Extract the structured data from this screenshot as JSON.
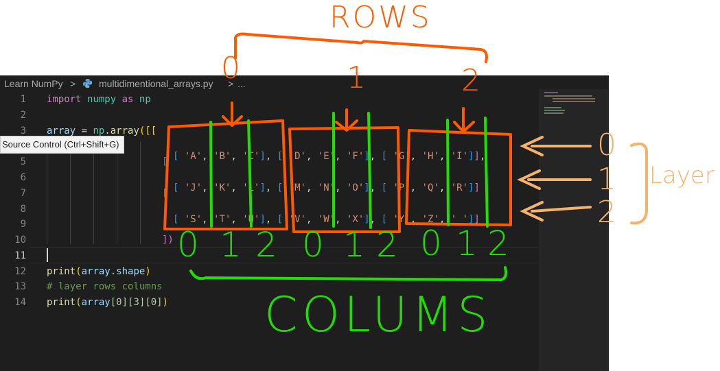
{
  "breadcrumb": {
    "folder": "Learn NumPy",
    "file": "multidimentional_arrays.py",
    "more": "...",
    "separator": ">"
  },
  "editor": {
    "line_numbers": [
      "1",
      "2",
      "3",
      "",
      "5",
      "6",
      "7",
      "8",
      "9",
      "10",
      "11",
      "12",
      "13",
      "14"
    ],
    "active_line": "11",
    "code": {
      "l1_kw": "import",
      "l1_mod": "numpy",
      "l1_as": "as",
      "l1_alias": "np",
      "l3_var": "array",
      "l3_eq": " = ",
      "l3_np": "np",
      "l3_dot": ".",
      "l3_fn": "array",
      "l3_open": "([[",
      "l10_close": "])",
      "l12_print": "print",
      "l12_arg": "array",
      "l12_attr": "shape",
      "l13_comment": "# layer rows columns",
      "l14_print": "print",
      "l14_arg": "array",
      "l14_idx": "[0][3][0]"
    },
    "array_rows": [
      [
        "'A'",
        "'B'",
        "'C'",
        "'D'",
        "'E'",
        "'F'",
        "'G'",
        "'H'",
        "'I'"
      ],
      [
        "'J'",
        "'K'",
        "'L'",
        "'M'",
        "'N'",
        "'O'",
        "'P'",
        "'Q'",
        "'R'"
      ],
      [
        "'S'",
        "'T'",
        "'U'",
        "'V'",
        "'W'",
        "'X'",
        "'Y'",
        "'Z'",
        "'_'"
      ]
    ]
  },
  "tooltip": {
    "text": "Source Control (Ctrl+Shift+G)"
  },
  "annotations": {
    "rows_title": "ROWS",
    "row_indices": [
      "0",
      "1",
      "2"
    ],
    "columns_title": "COLUMS",
    "column_indices": [
      "0",
      "1",
      "2",
      "0",
      "1",
      "2",
      "0",
      "1",
      "2"
    ],
    "layer_title": "Layer",
    "layer_indices": [
      "0",
      "1",
      "2"
    ],
    "colors": {
      "rows": "#ff5a00",
      "columns": "#22dd00",
      "layer": "#f5b26b"
    }
  },
  "colors": {
    "editor_bg": "#1e1e1e",
    "keyword": "#c586c0",
    "string": "#ce9178",
    "comment": "#6a9955"
  }
}
